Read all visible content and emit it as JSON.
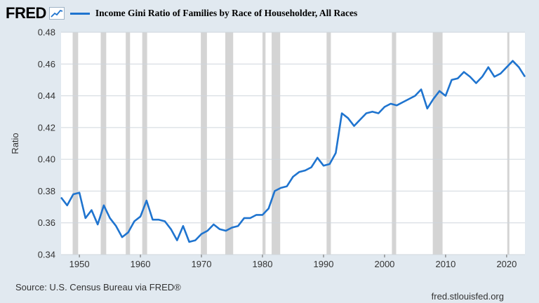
{
  "header": {
    "logo_text": "FRED",
    "series_title": "Income Gini Ratio of Families by Race of Householder, All Races"
  },
  "footer": {
    "source": "Source: U.S. Census Bureau via FRED®",
    "url": "fred.stlouisfed.org"
  },
  "colors": {
    "line": "#1f74cf",
    "plot_bg": "#ffffff",
    "page_bg": "#e1e9f0",
    "recession": "#d4d4d4",
    "grid": "#cfd6dd"
  },
  "icons": {
    "logo_graph": "line-graph-icon"
  },
  "chart_data": {
    "type": "line",
    "title": "Income Gini Ratio of Families by Race of Householder, All Races",
    "ylabel": "Ratio",
    "xlabel": "",
    "xlim": [
      1947,
      2023
    ],
    "ylim": [
      0.34,
      0.48
    ],
    "yticks": [
      0.34,
      0.36,
      0.38,
      0.4,
      0.42,
      0.44,
      0.46,
      0.48
    ],
    "ytick_labels": [
      "0.34",
      "0.36",
      "0.38",
      "0.40",
      "0.42",
      "0.44",
      "0.46",
      "0.48"
    ],
    "xticks": [
      1950,
      1960,
      1970,
      1980,
      1990,
      2000,
      2010,
      2020
    ],
    "xtick_labels": [
      "1950",
      "1960",
      "1970",
      "1980",
      "1990",
      "2000",
      "2010",
      "2020"
    ],
    "grid": true,
    "recessions": [
      [
        1948.9,
        1949.8
      ],
      [
        1953.5,
        1954.4
      ],
      [
        1957.6,
        1958.3
      ],
      [
        1960.3,
        1961.1
      ],
      [
        1969.9,
        1970.9
      ],
      [
        1973.9,
        1975.2
      ],
      [
        1980.0,
        1980.5
      ],
      [
        1981.5,
        1982.9
      ],
      [
        1990.5,
        1991.2
      ],
      [
        2001.2,
        2001.9
      ],
      [
        2007.9,
        2009.5
      ],
      [
        2020.1,
        2020.4
      ]
    ],
    "series": [
      {
        "x": [
          1947,
          1948,
          1949,
          1950,
          1951,
          1952,
          1953,
          1954,
          1955,
          1956,
          1957,
          1958,
          1959,
          1960,
          1961,
          1962,
          1963,
          1964,
          1965,
          1966,
          1967,
          1968,
          1969,
          1970,
          1971,
          1972,
          1973,
          1974,
          1975,
          1976,
          1977,
          1978,
          1979,
          1980,
          1981,
          1982,
          1983,
          1984,
          1985,
          1986,
          1987,
          1988,
          1989,
          1990,
          1991,
          1992,
          1993,
          1994,
          1995,
          1996,
          1997,
          1998,
          1999,
          2000,
          2001,
          2002,
          2003,
          2004,
          2005,
          2006,
          2007,
          2008,
          2009,
          2010,
          2011,
          2012,
          2013,
          2014,
          2015,
          2016,
          2017,
          2018,
          2019,
          2020,
          2021,
          2022,
          2023
        ],
        "y": [
          0.376,
          0.371,
          0.378,
          0.379,
          0.363,
          0.368,
          0.359,
          0.371,
          0.363,
          0.358,
          0.351,
          0.354,
          0.361,
          0.364,
          0.374,
          0.362,
          0.362,
          0.361,
          0.356,
          0.349,
          0.358,
          0.348,
          0.349,
          0.353,
          0.355,
          0.359,
          0.356,
          0.355,
          0.357,
          0.358,
          0.363,
          0.363,
          0.365,
          0.365,
          0.369,
          0.38,
          0.382,
          0.383,
          0.389,
          0.392,
          0.393,
          0.395,
          0.401,
          0.396,
          0.397,
          0.404,
          0.429,
          0.426,
          0.421,
          0.425,
          0.429,
          0.43,
          0.429,
          0.433,
          0.435,
          0.434,
          0.436,
          0.438,
          0.44,
          0.444,
          0.432,
          0.438,
          0.443,
          0.44,
          0.45,
          0.451,
          0.455,
          0.452,
          0.448,
          0.452,
          0.458,
          0.452,
          0.454,
          0.458,
          0.462,
          0.458,
          0.452
        ]
      }
    ]
  }
}
